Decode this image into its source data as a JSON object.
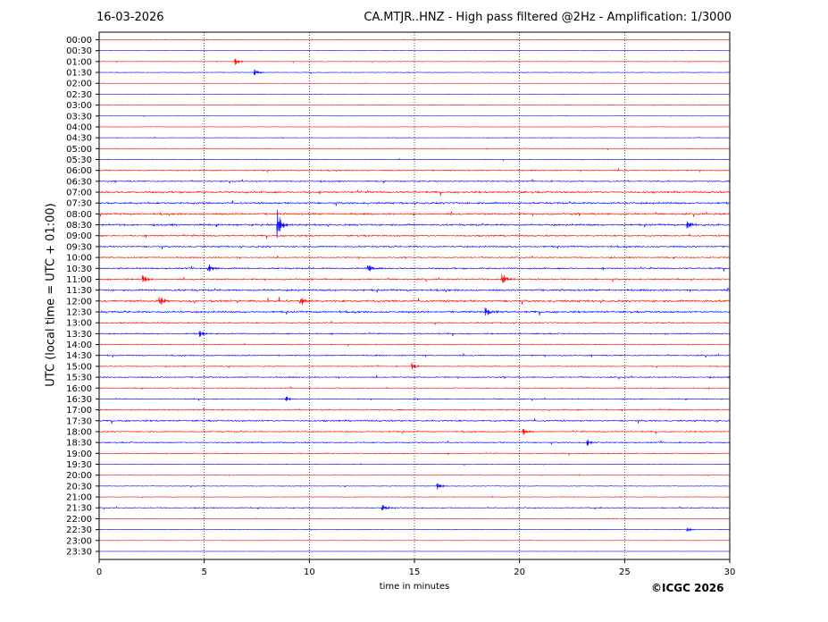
{
  "header": {
    "date": "16-03-2026",
    "title": "CA.MTJR..HNZ - High pass filtered @2Hz - Amplification: 1/3000"
  },
  "footer": {
    "copyright": "©ICGC 2026"
  },
  "chart_data": {
    "type": "line",
    "title": "CA.MTJR..HNZ - High pass filtered @2Hz - Amplification: 1/3000",
    "xlabel": "time in minutes",
    "ylabel": "UTC (local time = UTC + 01:00)",
    "xlim": [
      0,
      30
    ],
    "x_ticks": [
      "0",
      "5",
      "10",
      "15",
      "20",
      "25",
      "30"
    ],
    "grid": "vertical dotted at 5-minute intervals",
    "trace_colors": [
      "#ff0000",
      "#0000ff"
    ],
    "rows": [
      "00:00",
      "00:30",
      "01:00",
      "01:30",
      "02:00",
      "02:30",
      "03:00",
      "03:30",
      "04:00",
      "04:30",
      "05:00",
      "05:30",
      "06:00",
      "06:30",
      "07:00",
      "07:30",
      "08:00",
      "08:30",
      "09:00",
      "09:30",
      "10:00",
      "10:30",
      "11:00",
      "11:30",
      "12:00",
      "12:30",
      "13:00",
      "13:30",
      "14:00",
      "14:30",
      "15:00",
      "15:30",
      "16:00",
      "16:30",
      "17:00",
      "17:30",
      "18:00",
      "18:30",
      "19:00",
      "19:30",
      "20:00",
      "20:30",
      "21:00",
      "21:30",
      "22:00",
      "22:30",
      "23:00",
      "23:30"
    ],
    "row_noise_level": [
      0.1,
      0.1,
      0.2,
      0.2,
      0.1,
      0.1,
      0.15,
      0.1,
      0.1,
      0.15,
      0.2,
      0.2,
      0.4,
      0.4,
      0.6,
      0.6,
      0.6,
      0.6,
      0.5,
      0.5,
      0.4,
      0.5,
      0.5,
      0.6,
      0.7,
      0.6,
      0.4,
      0.4,
      0.3,
      0.4,
      0.3,
      0.4,
      0.3,
      0.3,
      0.4,
      0.5,
      0.4,
      0.4,
      0.3,
      0.2,
      0.2,
      0.2,
      0.2,
      0.3,
      0.15,
      0.15,
      0.1,
      0.05
    ],
    "events": [
      {
        "row": "01:00",
        "minute": 6.5,
        "amplitude": 0.3
      },
      {
        "row": "01:30",
        "minute": 7.4,
        "amplitude": 0.35
      },
      {
        "row": "08:30",
        "minute": 8.5,
        "amplitude": 1.4
      },
      {
        "row": "08:30",
        "minute": 28.0,
        "amplitude": 0.4
      },
      {
        "row": "10:30",
        "minute": 5.2,
        "amplitude": 0.5
      },
      {
        "row": "10:30",
        "minute": 12.8,
        "amplitude": 0.45
      },
      {
        "row": "11:00",
        "minute": 19.2,
        "amplitude": 0.6
      },
      {
        "row": "11:00",
        "minute": 2.1,
        "amplitude": 0.4
      },
      {
        "row": "12:00",
        "minute": 9.6,
        "amplitude": 0.5
      },
      {
        "row": "12:00",
        "minute": 2.9,
        "amplitude": 0.5
      },
      {
        "row": "12:30",
        "minute": 18.4,
        "amplitude": 0.45
      },
      {
        "row": "13:30",
        "minute": 4.8,
        "amplitude": 0.35
      },
      {
        "row": "15:00",
        "minute": 14.9,
        "amplitude": 0.35
      },
      {
        "row": "16:30",
        "minute": 8.9,
        "amplitude": 0.3
      },
      {
        "row": "18:00",
        "minute": 20.2,
        "amplitude": 0.3
      },
      {
        "row": "18:30",
        "minute": 23.2,
        "amplitude": 0.35
      },
      {
        "row": "20:30",
        "minute": 16.1,
        "amplitude": 0.35
      },
      {
        "row": "21:30",
        "minute": 13.5,
        "amplitude": 0.3
      },
      {
        "row": "22:30",
        "minute": 28.0,
        "amplitude": 0.2
      }
    ]
  }
}
